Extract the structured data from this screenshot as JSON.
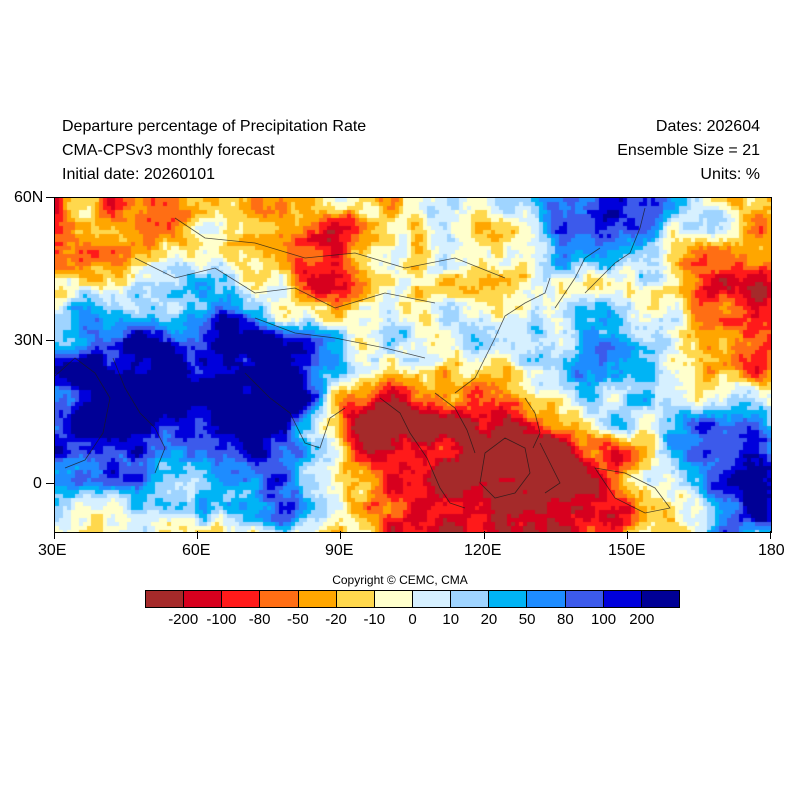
{
  "header": {
    "title_line1": "Departure percentage of Precipitation Rate",
    "title_line2": "CMA-CPSv3 monthly forecast",
    "title_line3": "Initial date: 20260101",
    "dates": "Dates: 202604",
    "ensemble": "Ensemble Size = 21",
    "units": "Units: %"
  },
  "map": {
    "lon_ticks": [
      "30E",
      "60E",
      "90E",
      "120E",
      "150E",
      "180"
    ],
    "lat_ticks": [
      "60N",
      "30N",
      "0"
    ],
    "lon_range": [
      30,
      180
    ],
    "lat_range": [
      -10,
      60
    ]
  },
  "copyright": "Copyright © CEMC, CMA",
  "legend": {
    "labels": [
      "-200",
      "-100",
      "-80",
      "-50",
      "-20",
      "-10",
      "0",
      "10",
      "20",
      "50",
      "80",
      "100",
      "200"
    ],
    "colors": [
      "#a52a2a",
      "#d7001e",
      "#ff1a1a",
      "#ff6e14",
      "#ffa600",
      "#ffd84d",
      "#ffffcc",
      "#d6f0ff",
      "#9fd4ff",
      "#00b4f5",
      "#1e8cff",
      "#3c5aeb",
      "#0000dc",
      "#000096"
    ]
  }
}
